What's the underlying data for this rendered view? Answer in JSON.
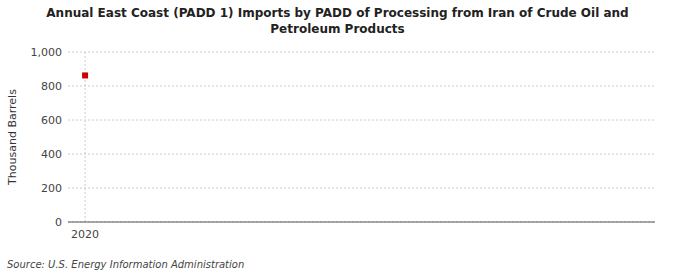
{
  "chart_data": {
    "type": "scatter",
    "title": "Annual East Coast (PADD 1) Imports by PADD of Processing from Iran of Crude Oil and\nPetroleum Products",
    "y_label": "Thousand Barrels",
    "source": "Source: U.S. Energy Information Administration",
    "x": [
      2020
    ],
    "values": [
      862
    ],
    "color": "#cc0000",
    "marker": "square",
    "xlim": [
      2019.7,
      2030
    ],
    "xticks": [
      2020
    ],
    "ylim": [
      0,
      1000
    ],
    "yticks": [
      0,
      200,
      400,
      600,
      800,
      {
        "value": 1000,
        "label": "1,000"
      }
    ],
    "grid": true
  }
}
